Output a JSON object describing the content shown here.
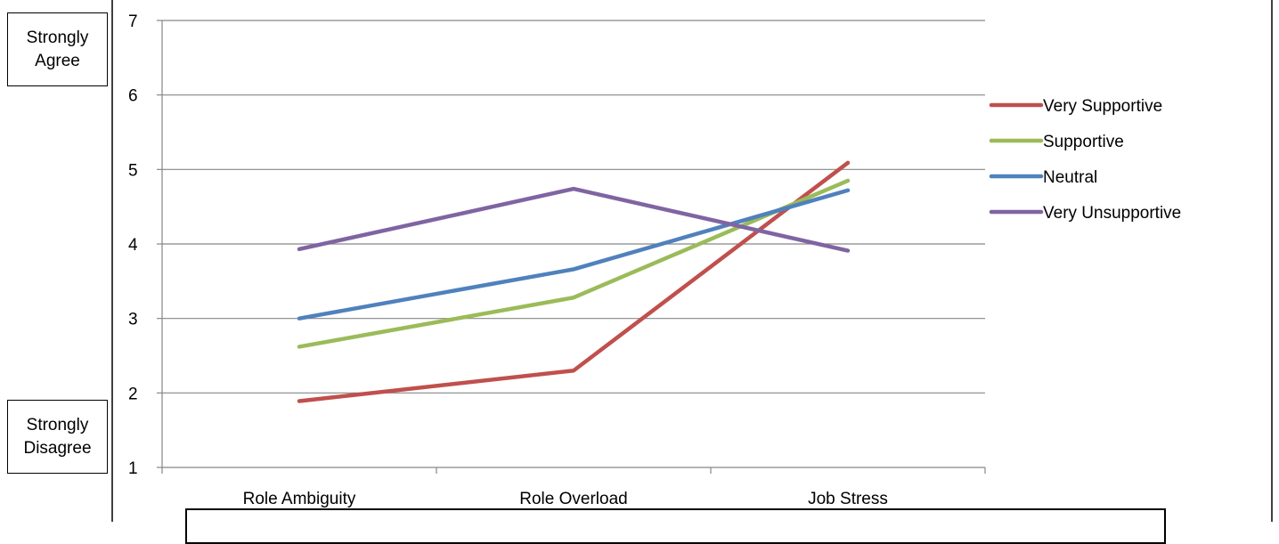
{
  "chart_data": {
    "type": "line",
    "categories": [
      "Role Ambiguity",
      "Role Overload",
      "Job Stress"
    ],
    "series": [
      {
        "name": "Very Supportive",
        "values": [
          1.89,
          2.3,
          5.09
        ],
        "color": "#c0504d"
      },
      {
        "name": "Supportive",
        "values": [
          2.62,
          3.28,
          4.85
        ],
        "color": "#9bbb59"
      },
      {
        "name": "Neutral",
        "values": [
          3.0,
          3.66,
          4.72
        ],
        "color": "#4f81bd"
      },
      {
        "name": "Very Unsupportive",
        "values": [
          3.93,
          4.74,
          3.91
        ],
        "color": "#8064a2"
      }
    ],
    "yticks": [
      1,
      2,
      3,
      4,
      5,
      6,
      7
    ],
    "ylim": [
      1,
      7
    ],
    "grid": true,
    "legend_position": "right",
    "annotations": {
      "top": "Strongly\nAgree",
      "bottom": "Strongly\nDisagree"
    }
  }
}
